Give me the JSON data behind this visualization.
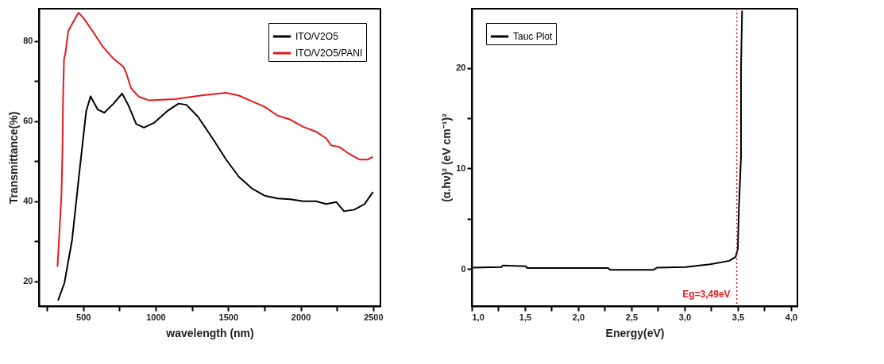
{
  "chart_data": [
    {
      "type": "line",
      "xlabel": "wavelength (nm)",
      "ylabel": "Transmittance(%)",
      "xlim": [
        195,
        2550
      ],
      "ylim": [
        13.8,
        88.1
      ],
      "xticks": [
        {
          "value": 250,
          "label": null
        },
        500,
        {
          "value": 750,
          "label": null
        },
        1000,
        {
          "value": 1250,
          "label": null
        },
        1500,
        {
          "value": 1750,
          "label": null
        },
        2000,
        {
          "value": 2250,
          "label": null
        },
        2500
      ],
      "yticks": [
        20,
        {
          "value": 30,
          "label": null
        },
        40,
        {
          "value": 50,
          "label": null
        },
        60,
        {
          "value": 70,
          "label": null
        },
        80
      ],
      "legend": "top right",
      "grid": false,
      "marker": "none",
      "line_style": "solid",
      "series": [
        {
          "name": "ITO/V2O5",
          "color": "#000000",
          "x": [
            327,
            371,
            424,
            477,
            521,
            551,
            601,
            645,
            707,
            769,
            813,
            866,
            919,
            990,
            1079,
            1158,
            1212,
            1292,
            1398,
            1486,
            1574,
            1663,
            1751,
            1840,
            1928,
            2017,
            2105,
            2176,
            2246,
            2299,
            2370,
            2441,
            2498
          ],
          "values": [
            15.2,
            19.6,
            30.4,
            48.2,
            62.5,
            66.2,
            62.9,
            62.1,
            64.3,
            66.9,
            63.9,
            59.3,
            58.4,
            59.6,
            62.5,
            64.4,
            64.1,
            61.1,
            55.4,
            50.4,
            46.1,
            43.2,
            41.4,
            40.7,
            40.5,
            40.0,
            40.0,
            39.3,
            39.8,
            37.5,
            37.9,
            39.3,
            42.3
          ]
        },
        {
          "name": "ITO/V2O5/PANI",
          "color": "#e31a1c",
          "x": [
            323,
            339,
            350,
            357,
            362,
            368,
            380,
            397,
            424,
            468,
            504,
            565,
            636,
            707,
            778,
            796,
            831,
            884,
            955,
            1132,
            1309,
            1486,
            1574,
            1663,
            1751,
            1840,
            1928,
            2017,
            2105,
            2176,
            2212,
            2265,
            2336,
            2407,
            2460,
            2498
          ],
          "values": [
            23.6,
            33.9,
            41.1,
            51.8,
            66.1,
            75.4,
            77.5,
            82.5,
            84.3,
            87.1,
            85.7,
            82.5,
            78.6,
            75.7,
            73.6,
            72.1,
            68.2,
            66.1,
            65.2,
            65.5,
            66.4,
            67.1,
            66.4,
            65.0,
            63.6,
            61.4,
            60.4,
            58.6,
            57.4,
            55.7,
            53.9,
            53.6,
            51.8,
            50.4,
            50.4,
            51.1
          ]
        }
      ]
    },
    {
      "type": "line",
      "xlabel": "Energy(eV)",
      "ylabel": "(α.hν)² (eV cm⁻¹)²",
      "xlim": [
        1.0,
        4.06
      ],
      "ylim": [
        -3.7,
        25.9
      ],
      "xticks": [
        {
          "value": 1.0,
          "label": "1,0"
        },
        {
          "value": 1.25,
          "label": null
        },
        {
          "value": 1.5,
          "label": "1,5"
        },
        {
          "value": 1.75,
          "label": null
        },
        {
          "value": 2.0,
          "label": "2,0"
        },
        {
          "value": 2.25,
          "label": null
        },
        {
          "value": 2.5,
          "label": "2,5"
        },
        {
          "value": 2.75,
          "label": null
        },
        {
          "value": 3.0,
          "label": "3,0"
        },
        {
          "value": 3.25,
          "label": null
        },
        {
          "value": 3.5,
          "label": "3,5"
        },
        {
          "value": 3.75,
          "label": null
        },
        {
          "value": 4.0,
          "label": "4,0"
        }
      ],
      "yticks": [
        0,
        {
          "value": 5,
          "label": null
        },
        10,
        {
          "value": 15,
          "label": null
        },
        20
      ],
      "legend": "top left",
      "grid": false,
      "marker": "none",
      "line_style": "solid",
      "ref_lines": [
        {
          "axis": "x",
          "value": 3.49,
          "label": "Eg=3,49eV",
          "color": "#e31a1c",
          "line_style": "dotted"
        }
      ],
      "series": [
        {
          "name": "Tauc Plot",
          "color": "#000000",
          "x": [
            1.0,
            1.28,
            1.29,
            1.51,
            1.52,
            2.28,
            2.3,
            2.71,
            2.74,
            3.01,
            3.24,
            3.42,
            3.48,
            3.5,
            3.51,
            3.53,
            3.53,
            3.54
          ],
          "values": [
            0.13,
            0.19,
            0.35,
            0.27,
            0.08,
            0.08,
            -0.08,
            -0.08,
            0.13,
            0.19,
            0.46,
            0.81,
            1.21,
            2.02,
            6.06,
            11.2,
            20.1,
            25.7
          ]
        }
      ]
    }
  ]
}
